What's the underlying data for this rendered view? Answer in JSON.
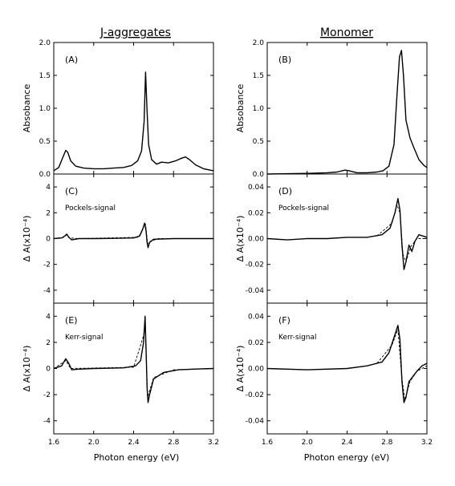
{
  "figure": {
    "columns": [
      {
        "title": "J-aggregates"
      },
      {
        "title": "Monomer"
      }
    ],
    "x_axis_label": "Photon energy (eV)"
  },
  "chart_data": [
    {
      "panel": "(A)",
      "type": "line",
      "column": 0,
      "row": 0,
      "ylabel": "Absobance",
      "annotation": "",
      "xlim": [
        1.6,
        3.2
      ],
      "ylim": [
        0.0,
        2.0
      ],
      "xticks": [
        "1.6",
        "2.0",
        "2.4",
        "2.8",
        "3.2"
      ],
      "yticks": [
        "0.0",
        "0.5",
        "1.0",
        "1.5",
        "2.0"
      ],
      "series": [
        {
          "values": [
            [
              1.6,
              0.05
            ],
            [
              1.65,
              0.1
            ],
            [
              1.69,
              0.25
            ],
            [
              1.72,
              0.36
            ],
            [
              1.74,
              0.33
            ],
            [
              1.77,
              0.2
            ],
            [
              1.82,
              0.12
            ],
            [
              1.9,
              0.09
            ],
            [
              2.0,
              0.08
            ],
            [
              2.1,
              0.08
            ],
            [
              2.2,
              0.09
            ],
            [
              2.3,
              0.1
            ],
            [
              2.38,
              0.13
            ],
            [
              2.44,
              0.2
            ],
            [
              2.48,
              0.35
            ],
            [
              2.505,
              0.8
            ],
            [
              2.52,
              1.55
            ],
            [
              2.535,
              0.95
            ],
            [
              2.55,
              0.45
            ],
            [
              2.58,
              0.22
            ],
            [
              2.63,
              0.15
            ],
            [
              2.68,
              0.18
            ],
            [
              2.75,
              0.17
            ],
            [
              2.82,
              0.2
            ],
            [
              2.88,
              0.24
            ],
            [
              2.92,
              0.26
            ],
            [
              2.96,
              0.22
            ],
            [
              3.02,
              0.14
            ],
            [
              3.1,
              0.08
            ],
            [
              3.2,
              0.05
            ]
          ]
        }
      ]
    },
    {
      "panel": "(B)",
      "type": "line",
      "column": 1,
      "row": 0,
      "ylabel": "Absobance",
      "annotation": "",
      "xlim": [
        1.6,
        3.2
      ],
      "ylim": [
        0.0,
        2.0
      ],
      "xticks": [
        "1.6",
        "2.0",
        "2.4",
        "2.8",
        "3.2"
      ],
      "yticks": [
        "0.0",
        "0.5",
        "1.0",
        "1.5",
        "2.0"
      ],
      "series": [
        {
          "values": [
            [
              1.6,
              0.0
            ],
            [
              2.0,
              0.01
            ],
            [
              2.2,
              0.02
            ],
            [
              2.3,
              0.03
            ],
            [
              2.38,
              0.06
            ],
            [
              2.42,
              0.05
            ],
            [
              2.5,
              0.02
            ],
            [
              2.6,
              0.02
            ],
            [
              2.7,
              0.03
            ],
            [
              2.76,
              0.05
            ],
            [
              2.82,
              0.12
            ],
            [
              2.87,
              0.45
            ],
            [
              2.9,
              1.2
            ],
            [
              2.925,
              1.78
            ],
            [
              2.945,
              1.88
            ],
            [
              2.965,
              1.5
            ],
            [
              2.99,
              0.82
            ],
            [
              3.03,
              0.55
            ],
            [
              3.07,
              0.4
            ],
            [
              3.12,
              0.22
            ],
            [
              3.17,
              0.13
            ],
            [
              3.2,
              0.1
            ]
          ]
        }
      ]
    },
    {
      "panel": "(C)",
      "type": "line",
      "column": 0,
      "row": 1,
      "ylabel": "Δ A(x10⁻⁴)",
      "annotation": "Pockels-signal",
      "xlim": [
        1.6,
        3.2
      ],
      "ylim": [
        -5,
        5
      ],
      "xticks": [
        "1.6",
        "2.0",
        "2.4",
        "2.8",
        "3.2"
      ],
      "yticks": [
        "-4",
        "-2",
        "0",
        "2",
        "4"
      ],
      "series": [
        {
          "values": [
            [
              1.6,
              0.0
            ],
            [
              1.68,
              0.05
            ],
            [
              1.71,
              0.2
            ],
            [
              1.73,
              0.35
            ],
            [
              1.75,
              0.1
            ],
            [
              1.78,
              -0.1
            ],
            [
              1.85,
              0.0
            ],
            [
              2.0,
              0.0
            ],
            [
              2.2,
              0.02
            ],
            [
              2.4,
              0.05
            ],
            [
              2.46,
              0.2
            ],
            [
              2.49,
              0.7
            ],
            [
              2.51,
              1.2
            ],
            [
              2.525,
              0.6
            ],
            [
              2.535,
              -0.3
            ],
            [
              2.545,
              -0.7
            ],
            [
              2.56,
              -0.3
            ],
            [
              2.6,
              -0.05
            ],
            [
              2.8,
              0.0
            ],
            [
              3.0,
              0.0
            ],
            [
              3.2,
              0.0
            ]
          ]
        },
        {
          "values": [
            [
              1.6,
              0.0
            ],
            [
              1.7,
              0.1
            ],
            [
              1.73,
              0.3
            ],
            [
              1.76,
              0.05
            ],
            [
              1.85,
              0.0
            ],
            [
              2.45,
              0.1
            ],
            [
              2.5,
              0.9
            ],
            [
              2.52,
              1.1
            ],
            [
              2.54,
              -0.4
            ],
            [
              2.57,
              -0.2
            ],
            [
              2.65,
              0.0
            ],
            [
              3.2,
              0.0
            ]
          ]
        }
      ]
    },
    {
      "panel": "(D)",
      "type": "line",
      "column": 1,
      "row": 1,
      "ylabel": "Δ A(x10⁻⁴)",
      "annotation": "Pockels-signal",
      "xlim": [
        1.6,
        3.2
      ],
      "ylim": [
        -0.05,
        0.05
      ],
      "xticks": [
        "1.6",
        "2.0",
        "2.4",
        "2.8",
        "3.2"
      ],
      "yticks": [
        "-0.04",
        "-0.02",
        "0.00",
        "0.02",
        "0.04"
      ],
      "series": [
        {
          "values": [
            [
              1.6,
              0.0
            ],
            [
              1.8,
              -0.001
            ],
            [
              2.0,
              0.0
            ],
            [
              2.2,
              0.0
            ],
            [
              2.4,
              0.001
            ],
            [
              2.6,
              0.001
            ],
            [
              2.75,
              0.003
            ],
            [
              2.83,
              0.008
            ],
            [
              2.88,
              0.02
            ],
            [
              2.91,
              0.031
            ],
            [
              2.93,
              0.022
            ],
            [
              2.95,
              -0.005
            ],
            [
              2.97,
              -0.024
            ],
            [
              2.99,
              -0.018
            ],
            [
              3.02,
              -0.005
            ],
            [
              3.05,
              -0.01
            ],
            [
              3.08,
              -0.002
            ],
            [
              3.12,
              0.003
            ],
            [
              3.2,
              0.001
            ]
          ]
        },
        {
          "values": [
            [
              2.7,
              0.002
            ],
            [
              2.85,
              0.012
            ],
            [
              2.9,
              0.026
            ],
            [
              2.93,
              0.02
            ],
            [
              2.96,
              -0.012
            ],
            [
              2.99,
              -0.018
            ],
            [
              3.04,
              -0.006
            ],
            [
              3.1,
              0.0
            ],
            [
              3.2,
              0.0
            ]
          ]
        }
      ]
    },
    {
      "panel": "(E)",
      "type": "line",
      "column": 0,
      "row": 2,
      "ylabel": "Δ A(x10⁻⁴)",
      "annotation": "Kerr-signal",
      "xlim": [
        1.6,
        3.2
      ],
      "ylim": [
        -5,
        5
      ],
      "xticks": [
        "1.6",
        "2.0",
        "2.4",
        "2.8",
        "3.2"
      ],
      "yticks": [
        "-4",
        "-2",
        "0",
        "2",
        "4"
      ],
      "series": [
        {
          "values": [
            [
              1.6,
              0.0
            ],
            [
              1.68,
              0.2
            ],
            [
              1.72,
              0.75
            ],
            [
              1.75,
              0.4
            ],
            [
              1.78,
              -0.1
            ],
            [
              1.85,
              -0.05
            ],
            [
              2.0,
              0.0
            ],
            [
              2.3,
              0.05
            ],
            [
              2.42,
              0.2
            ],
            [
              2.47,
              0.6
            ],
            [
              2.5,
              2.0
            ],
            [
              2.515,
              4.0
            ],
            [
              2.525,
              1.5
            ],
            [
              2.535,
              -1.5
            ],
            [
              2.545,
              -2.6
            ],
            [
              2.56,
              -2.0
            ],
            [
              2.6,
              -0.8
            ],
            [
              2.7,
              -0.3
            ],
            [
              2.85,
              -0.1
            ],
            [
              3.0,
              -0.05
            ],
            [
              3.2,
              0.0
            ]
          ]
        },
        {
          "values": [
            [
              1.6,
              0.0
            ],
            [
              1.72,
              0.6
            ],
            [
              1.77,
              0.0
            ],
            [
              2.4,
              0.1
            ],
            [
              2.5,
              2.5
            ],
            [
              2.515,
              3.5
            ],
            [
              2.54,
              -2.2
            ],
            [
              2.6,
              -0.7
            ],
            [
              2.8,
              -0.1
            ],
            [
              3.2,
              0.0
            ]
          ]
        }
      ]
    },
    {
      "panel": "(F)",
      "type": "line",
      "column": 1,
      "row": 2,
      "ylabel": "Δ A(x10⁻⁴)",
      "annotation": "Kerr-signal",
      "xlim": [
        1.6,
        3.2
      ],
      "ylim": [
        -0.05,
        0.05
      ],
      "xticks": [
        "1.6",
        "2.0",
        "2.4",
        "2.8",
        "3.2"
      ],
      "yticks": [
        "-0.04",
        "-0.02",
        "0.00",
        "0.02",
        "0.04"
      ],
      "series": [
        {
          "values": [
            [
              1.6,
              0.0
            ],
            [
              2.0,
              -0.001
            ],
            [
              2.4,
              0.0
            ],
            [
              2.6,
              0.002
            ],
            [
              2.75,
              0.005
            ],
            [
              2.82,
              0.012
            ],
            [
              2.88,
              0.026
            ],
            [
              2.91,
              0.033
            ],
            [
              2.93,
              0.022
            ],
            [
              2.95,
              -0.01
            ],
            [
              2.97,
              -0.026
            ],
            [
              2.99,
              -0.022
            ],
            [
              3.02,
              -0.01
            ],
            [
              3.06,
              -0.006
            ],
            [
              3.1,
              -0.002
            ],
            [
              3.15,
              0.002
            ],
            [
              3.2,
              0.004
            ]
          ]
        },
        {
          "values": [
            [
              2.7,
              0.004
            ],
            [
              2.85,
              0.018
            ],
            [
              2.91,
              0.03
            ],
            [
              2.95,
              -0.008
            ],
            [
              2.98,
              -0.024
            ],
            [
              3.03,
              -0.01
            ],
            [
              3.1,
              -0.002
            ],
            [
              3.2,
              0.002
            ]
          ]
        }
      ]
    }
  ]
}
